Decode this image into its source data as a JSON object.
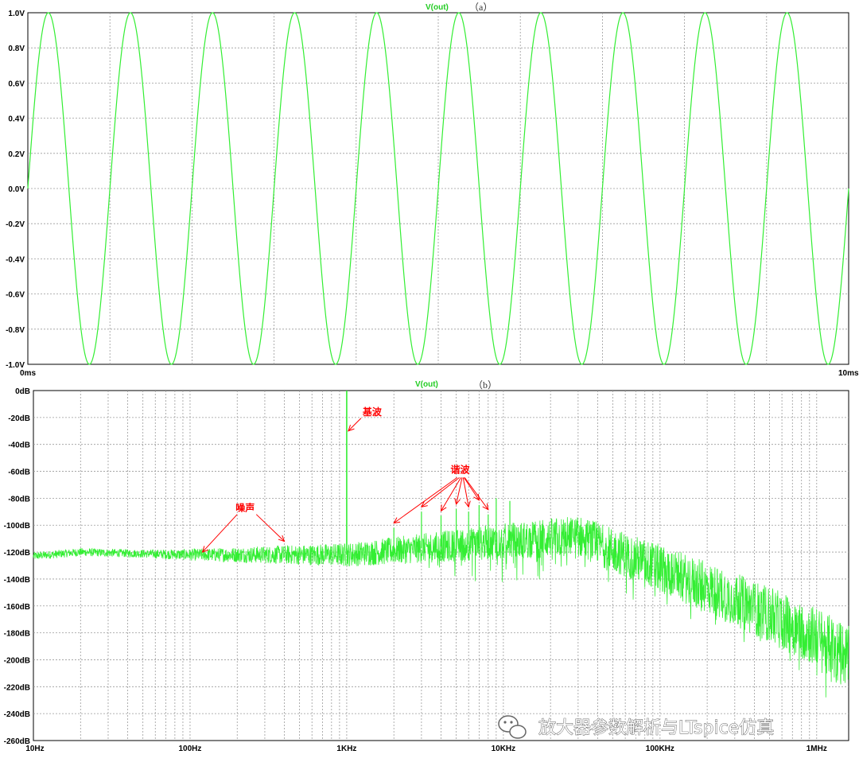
{
  "colors": {
    "trace": "#33ee33",
    "grid": "#9a9a9a",
    "axis": "#000000",
    "annotation": "#ff0000"
  },
  "chart_data": [
    {
      "id": "a",
      "type": "line",
      "panel_tag": "（a）",
      "series": [
        {
          "name": "V(out)",
          "function": "sine",
          "amplitude": 1.0,
          "frequency_hz": 1000,
          "phase_deg": 0
        }
      ],
      "x_range_ms": [
        0,
        10
      ],
      "y_range_v": [
        -1.0,
        1.0
      ],
      "x_tick_labels": [
        "0ms",
        "10ms"
      ],
      "y_tick_labels": [
        "1.0V",
        "0.8V",
        "0.6V",
        "0.4V",
        "0.2V",
        "0.0V",
        "-0.2V",
        "-0.4V",
        "-0.6V",
        "-0.8V",
        "-1.0V"
      ],
      "grid": true
    },
    {
      "id": "b",
      "type": "line",
      "x_scale": "log",
      "panel_tag": "（b）",
      "series": [
        {
          "name": "V(out)"
        }
      ],
      "x_range_hz": [
        10,
        1600000
      ],
      "y_range_db": [
        -260,
        0
      ],
      "x_tick_labels": [
        "10Hz",
        "100Hz",
        "1KHz",
        "10KHz",
        "100KHz",
        "1MHz"
      ],
      "y_tick_labels": [
        "0dB",
        "-20dB",
        "-40dB",
        "-60dB",
        "-80dB",
        "-100dB",
        "-120dB",
        "-140dB",
        "-160dB",
        "-180dB",
        "-200dB",
        "-220dB",
        "-240dB",
        "-260dB"
      ],
      "grid": true,
      "fundamental": {
        "freq_hz": 1000,
        "db": 0
      },
      "harmonics": [
        {
          "freq_hz": 2000,
          "db": -102
        },
        {
          "freq_hz": 3000,
          "db": -90
        },
        {
          "freq_hz": 4000,
          "db": -93
        },
        {
          "freq_hz": 5000,
          "db": -88
        },
        {
          "freq_hz": 6000,
          "db": -90
        },
        {
          "freq_hz": 7000,
          "db": -85
        },
        {
          "freq_hz": 8000,
          "db": -92
        },
        {
          "freq_hz": 9000,
          "db": -80
        },
        {
          "freq_hz": 11000,
          "db": -82
        }
      ],
      "noise_floor_db": [
        {
          "freq_hz": 10,
          "db": -123
        },
        {
          "freq_hz": 20,
          "db": -120
        },
        {
          "freq_hz": 100,
          "db": -122
        },
        {
          "freq_hz": 1000,
          "db": -122
        },
        {
          "freq_hz": 10000,
          "db": -112
        },
        {
          "freq_hz": 30000,
          "db": -108
        },
        {
          "freq_hz": 100000,
          "db": -132
        },
        {
          "freq_hz": 300000,
          "db": -155
        },
        {
          "freq_hz": 1000000,
          "db": -183
        },
        {
          "freq_hz": 1600000,
          "db": -198
        }
      ],
      "annotations": [
        {
          "label": "基波",
          "freq_hz": 1000,
          "db": -30
        },
        {
          "label": "谐波",
          "freq_hz": 4000,
          "db": -80
        },
        {
          "label": "噪声",
          "freq_hz": 200,
          "db": -118
        }
      ]
    }
  ],
  "watermark": {
    "text": "放大器参数解析与LTspice仿真",
    "icon": "wechat-icon"
  }
}
